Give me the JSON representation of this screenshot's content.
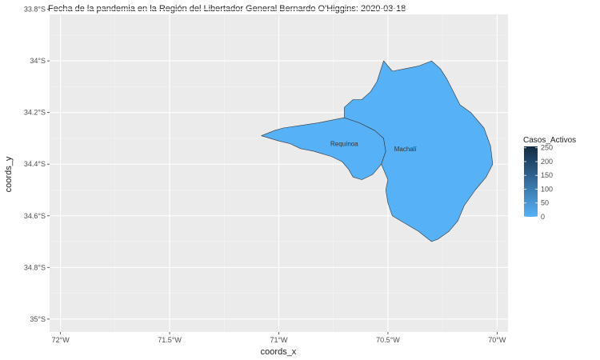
{
  "chart_data": {
    "type": "map",
    "title": "Fecha de la pandemia en la Región del Libertador General Bernardo O'Higgins: 2020-03-18",
    "xlabel": "coords_x",
    "ylabel": "coords_y",
    "xlim": [
      -72.05,
      -69.95
    ],
    "ylim": [
      -35.05,
      -33.82
    ],
    "x_ticks": [
      {
        "value": -72.0,
        "label": "72°W"
      },
      {
        "value": -71.5,
        "label": "71.5°W"
      },
      {
        "value": -71.0,
        "label": "71°W"
      },
      {
        "value": -70.5,
        "label": "70.5°W"
      },
      {
        "value": -70.0,
        "label": "70°W"
      }
    ],
    "y_ticks": [
      {
        "value": -33.8,
        "label": "33.8°S"
      },
      {
        "value": -34.0,
        "label": "34°S"
      },
      {
        "value": -34.2,
        "label": "34.2°S"
      },
      {
        "value": -34.4,
        "label": "34.4°S"
      },
      {
        "value": -34.6,
        "label": "34.6°S"
      },
      {
        "value": -34.8,
        "label": "34.8°S"
      },
      {
        "value": -35.0,
        "label": "35°S"
      }
    ],
    "grid": true,
    "legend": {
      "title": "Casos_Activos",
      "position": "right",
      "ticks": [
        "250",
        "200",
        "150",
        "100",
        "50",
        "0"
      ],
      "tick_values": [
        250,
        200,
        150,
        100,
        50,
        0
      ],
      "range": [
        0,
        255
      ],
      "color_low": "#56b1f7",
      "color_high": "#132b43"
    },
    "regions": [
      {
        "name": "Requínoa",
        "label_pos": [
          -70.7,
          -34.32
        ],
        "casos_activos": 0,
        "polygon": [
          [
            -71.08,
            -34.29
          ],
          [
            -71.02,
            -34.27
          ],
          [
            -70.98,
            -34.26
          ],
          [
            -70.9,
            -34.25
          ],
          [
            -70.82,
            -34.24
          ],
          [
            -70.76,
            -34.23
          ],
          [
            -70.7,
            -34.22
          ],
          [
            -70.63,
            -34.24
          ],
          [
            -70.56,
            -34.27
          ],
          [
            -70.52,
            -34.3
          ],
          [
            -70.51,
            -34.35
          ],
          [
            -70.53,
            -34.4
          ],
          [
            -70.57,
            -34.44
          ],
          [
            -70.62,
            -34.46
          ],
          [
            -70.66,
            -34.45
          ],
          [
            -70.68,
            -34.42
          ],
          [
            -70.71,
            -34.39
          ],
          [
            -70.76,
            -34.37
          ],
          [
            -70.8,
            -34.36
          ],
          [
            -70.84,
            -34.35
          ],
          [
            -70.9,
            -34.34
          ],
          [
            -70.95,
            -34.32
          ],
          [
            -71.0,
            -34.31
          ]
        ]
      },
      {
        "name": "Machalí",
        "label_pos": [
          -70.42,
          -34.34
        ],
        "casos_activos": 0,
        "polygon": [
          [
            -70.7,
            -34.22
          ],
          [
            -70.7,
            -34.18
          ],
          [
            -70.66,
            -34.15
          ],
          [
            -70.62,
            -34.15
          ],
          [
            -70.58,
            -34.12
          ],
          [
            -70.55,
            -34.08
          ],
          [
            -70.52,
            -34.0
          ],
          [
            -70.48,
            -34.04
          ],
          [
            -70.42,
            -34.03
          ],
          [
            -70.36,
            -34.02
          ],
          [
            -70.3,
            -34.0
          ],
          [
            -70.26,
            -34.03
          ],
          [
            -70.23,
            -34.07
          ],
          [
            -70.2,
            -34.12
          ],
          [
            -70.17,
            -34.17
          ],
          [
            -70.12,
            -34.2
          ],
          [
            -70.06,
            -34.26
          ],
          [
            -70.03,
            -34.33
          ],
          [
            -70.02,
            -34.4
          ],
          [
            -70.05,
            -34.45
          ],
          [
            -70.1,
            -34.5
          ],
          [
            -70.15,
            -34.56
          ],
          [
            -70.18,
            -34.62
          ],
          [
            -70.22,
            -34.66
          ],
          [
            -70.27,
            -34.69
          ],
          [
            -70.3,
            -34.7
          ],
          [
            -70.33,
            -34.68
          ],
          [
            -70.36,
            -34.66
          ],
          [
            -70.4,
            -34.64
          ],
          [
            -70.44,
            -34.62
          ],
          [
            -70.48,
            -34.6
          ],
          [
            -70.5,
            -34.55
          ],
          [
            -70.51,
            -34.5
          ],
          [
            -70.5,
            -34.46
          ],
          [
            -70.53,
            -34.4
          ],
          [
            -70.51,
            -34.35
          ],
          [
            -70.52,
            -34.3
          ],
          [
            -70.56,
            -34.27
          ],
          [
            -70.63,
            -34.24
          ]
        ]
      }
    ]
  }
}
